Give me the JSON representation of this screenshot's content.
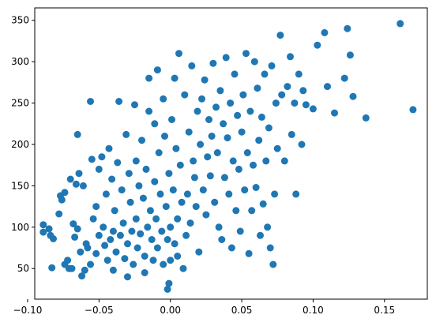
{
  "chart_data": {
    "type": "scatter",
    "title": "",
    "xlabel": "",
    "ylabel": "",
    "xlim": [
      -0.095,
      0.18
    ],
    "ylim": [
      13,
      365
    ],
    "grid": false,
    "legend": "none",
    "marker_color": "#1f77b4",
    "x_ticks": [
      -0.1,
      -0.05,
      0.0,
      0.05,
      0.1,
      0.15
    ],
    "x_tick_labels": [
      "−0.10",
      "−0.05",
      "0.00",
      "0.05",
      "0.10",
      "0.15"
    ],
    "y_ticks": [
      50,
      100,
      150,
      200,
      250,
      300,
      350
    ],
    "y_tick_labels": [
      "50",
      "100",
      "150",
      "200",
      "250",
      "300",
      "350"
    ],
    "series": [
      {
        "points": [
          [
            -0.089,
            103
          ],
          [
            -0.089,
            94
          ],
          [
            -0.085,
            98
          ],
          [
            -0.084,
            90
          ],
          [
            -0.083,
            51
          ],
          [
            -0.082,
            86
          ],
          [
            -0.078,
            116
          ],
          [
            -0.077,
            138
          ],
          [
            -0.076,
            133
          ],
          [
            -0.074,
            142
          ],
          [
            -0.074,
            55
          ],
          [
            -0.072,
            60
          ],
          [
            -0.071,
            50
          ],
          [
            -0.07,
            158
          ],
          [
            -0.069,
            50
          ],
          [
            -0.068,
            104
          ],
          [
            -0.067,
            88
          ],
          [
            -0.066,
            152
          ],
          [
            -0.065,
            212
          ],
          [
            -0.065,
            98
          ],
          [
            -0.064,
            165
          ],
          [
            -0.063,
            70
          ],
          [
            -0.062,
            41
          ],
          [
            -0.061,
            150
          ],
          [
            -0.06,
            48
          ],
          [
            -0.059,
            80
          ],
          [
            -0.058,
            75
          ],
          [
            -0.056,
            252
          ],
          [
            -0.056,
            55
          ],
          [
            -0.055,
            182
          ],
          [
            -0.054,
            110
          ],
          [
            -0.052,
            125
          ],
          [
            -0.052,
            68
          ],
          [
            -0.05,
            170
          ],
          [
            -0.05,
            90
          ],
          [
            -0.048,
            185
          ],
          [
            -0.047,
            100
          ],
          [
            -0.046,
            78
          ],
          [
            -0.045,
            140
          ],
          [
            -0.044,
            60
          ],
          [
            -0.043,
            195
          ],
          [
            -0.042,
            85
          ],
          [
            -0.041,
            158
          ],
          [
            -0.04,
            95
          ],
          [
            -0.04,
            48
          ],
          [
            -0.039,
            120
          ],
          [
            -0.038,
            70
          ],
          [
            -0.037,
            178
          ],
          [
            -0.036,
            252
          ],
          [
            -0.035,
            90
          ],
          [
            -0.034,
            145
          ],
          [
            -0.033,
            105
          ],
          [
            -0.032,
            62
          ],
          [
            -0.031,
            212
          ],
          [
            -0.03,
            80
          ],
          [
            -0.03,
            40
          ],
          [
            -0.029,
            165
          ],
          [
            -0.028,
            130
          ],
          [
            -0.027,
            95
          ],
          [
            -0.026,
            55
          ],
          [
            -0.025,
            248
          ],
          [
            -0.024,
            180
          ],
          [
            -0.024,
            110
          ],
          [
            -0.023,
            75
          ],
          [
            -0.022,
            150
          ],
          [
            -0.021,
            92
          ],
          [
            -0.02,
            205
          ],
          [
            -0.019,
            135
          ],
          [
            -0.018,
            65
          ],
          [
            -0.018,
            45
          ],
          [
            -0.017,
            170
          ],
          [
            -0.016,
            100
          ],
          [
            -0.015,
            280
          ],
          [
            -0.015,
            240
          ],
          [
            -0.014,
            120
          ],
          [
            -0.013,
            85
          ],
          [
            -0.012,
            60
          ],
          [
            -0.011,
            225
          ],
          [
            -0.011,
            155
          ],
          [
            -0.01,
            110
          ],
          [
            -0.009,
            290
          ],
          [
            -0.009,
            75
          ],
          [
            -0.008,
            190
          ],
          [
            -0.007,
            140
          ],
          [
            -0.006,
            95
          ],
          [
            -0.005,
            255
          ],
          [
            -0.005,
            55
          ],
          [
            -0.004,
            210
          ],
          [
            -0.003,
            125
          ],
          [
            -0.002,
            85
          ],
          [
            -0.002,
            25
          ],
          [
            -0.001,
            165
          ],
          [
            -0.001,
            32
          ],
          [
            0.0,
            100
          ],
          [
            0.0,
            60
          ],
          [
            0.001,
            230
          ],
          [
            0.002,
            145
          ],
          [
            0.003,
            280
          ],
          [
            0.003,
            80
          ],
          [
            0.004,
            195
          ],
          [
            0.005,
            110
          ],
          [
            0.005,
            65
          ],
          [
            0.006,
            310
          ],
          [
            0.007,
            175
          ],
          [
            0.008,
            130
          ],
          [
            0.009,
            50
          ],
          [
            0.01,
            260
          ],
          [
            0.011,
            90
          ],
          [
            0.012,
            140
          ],
          [
            0.013,
            215
          ],
          [
            0.014,
            105
          ],
          [
            0.015,
            295
          ],
          [
            0.016,
            180
          ],
          [
            0.017,
            160
          ],
          [
            0.018,
            125
          ],
          [
            0.019,
            240
          ],
          [
            0.02,
            70
          ],
          [
            0.021,
            200
          ],
          [
            0.022,
            255
          ],
          [
            0.023,
            145
          ],
          [
            0.024,
            278
          ],
          [
            0.025,
            115
          ],
          [
            0.026,
            185
          ],
          [
            0.027,
            230
          ],
          [
            0.028,
            162
          ],
          [
            0.029,
            210
          ],
          [
            0.03,
            298
          ],
          [
            0.031,
            130
          ],
          [
            0.032,
            245
          ],
          [
            0.033,
            190
          ],
          [
            0.034,
            100
          ],
          [
            0.035,
            265
          ],
          [
            0.036,
            85
          ],
          [
            0.037,
            225
          ],
          [
            0.038,
            160
          ],
          [
            0.039,
            305
          ],
          [
            0.04,
            208
          ],
          [
            0.041,
            140
          ],
          [
            0.042,
            250
          ],
          [
            0.043,
            75
          ],
          [
            0.044,
            180
          ],
          [
            0.045,
            285
          ],
          [
            0.046,
            120
          ],
          [
            0.047,
            235
          ],
          [
            0.048,
            170
          ],
          [
            0.049,
            95
          ],
          [
            0.05,
            215
          ],
          [
            0.051,
            260
          ],
          [
            0.052,
            145
          ],
          [
            0.053,
            310
          ],
          [
            0.054,
            190
          ],
          [
            0.055,
            68
          ],
          [
            0.056,
            240
          ],
          [
            0.057,
            120
          ],
          [
            0.058,
            175
          ],
          [
            0.059,
            300
          ],
          [
            0.06,
            148
          ],
          [
            0.061,
            268
          ],
          [
            0.062,
            205
          ],
          [
            0.063,
            90
          ],
          [
            0.064,
            233
          ],
          [
            0.065,
            128
          ],
          [
            0.066,
            285
          ],
          [
            0.067,
            180
          ],
          [
            0.068,
            100
          ],
          [
            0.069,
            220
          ],
          [
            0.07,
            75
          ],
          [
            0.071,
            295
          ],
          [
            0.072,
            55
          ],
          [
            0.073,
            140
          ],
          [
            0.074,
            250
          ],
          [
            0.075,
            195
          ],
          [
            0.077,
            332
          ],
          [
            0.078,
            260
          ],
          [
            0.08,
            180
          ],
          [
            0.082,
            270
          ],
          [
            0.084,
            306
          ],
          [
            0.085,
            212
          ],
          [
            0.087,
            250
          ],
          [
            0.088,
            140
          ],
          [
            0.09,
            285
          ],
          [
            0.092,
            200
          ],
          [
            0.093,
            265
          ],
          [
            0.095,
            248
          ],
          [
            0.1,
            243
          ],
          [
            0.103,
            320
          ],
          [
            0.108,
            335
          ],
          [
            0.11,
            270
          ],
          [
            0.115,
            238
          ],
          [
            0.122,
            280
          ],
          [
            0.124,
            340
          ],
          [
            0.126,
            308
          ],
          [
            0.128,
            258
          ],
          [
            0.137,
            232
          ],
          [
            0.161,
            346
          ],
          [
            0.17,
            242
          ]
        ]
      }
    ]
  }
}
